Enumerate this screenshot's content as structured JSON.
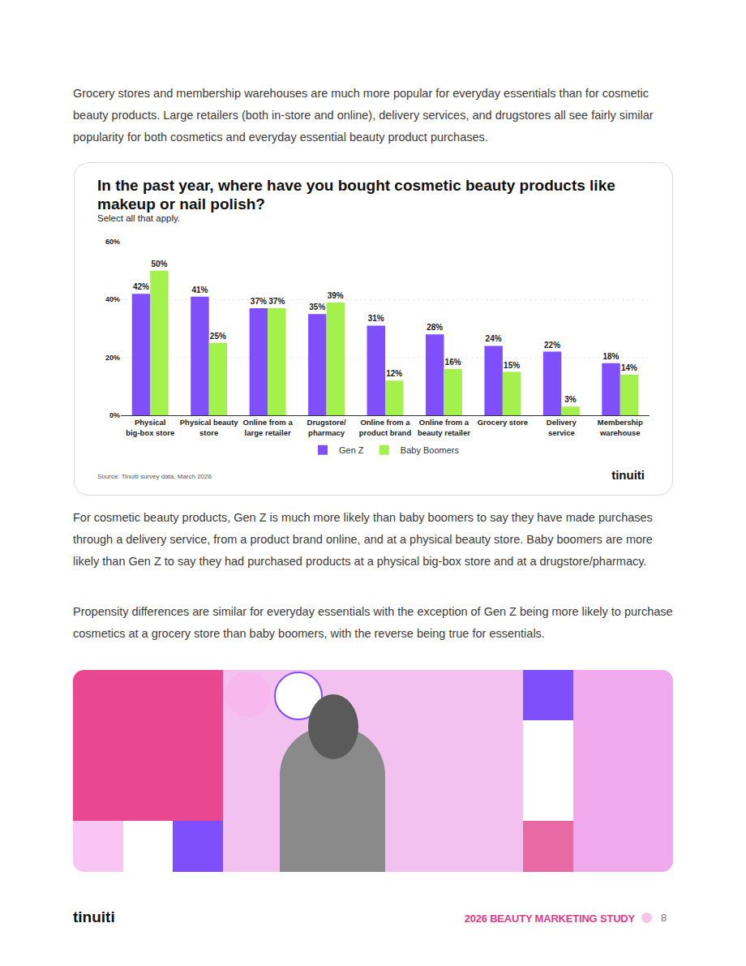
{
  "text_before": [
    "Grocery stores and membership warehouses are much more popular for everyday essentials than for cosmetic beauty products. Large retailers (both in-store and online), delivery services, and drugstores all see fairly similar popularity for both cosmetics and everyday essential beauty product purchases."
  ],
  "chart_card": {
    "source": "Source: Tinuiti survey data, March 2026",
    "logo": "tinuiti"
  },
  "chart_data": {
    "type": "bar",
    "title": "In the past year, where have you bought cosmetic beauty products like makeup or nail polish?",
    "subtitle": "Select all that apply.",
    "categories": [
      "Physical big-box store",
      "Physical beauty store",
      "Online from a large retailer",
      "Drugstore/pharmacy",
      "Online from a product brand",
      "Online from a beauty retailer",
      "Grocery store",
      "Delivery service",
      "Membership warehouse"
    ],
    "series": [
      {
        "name": "Gen Z",
        "color": "#7f4ffb",
        "values": [
          42,
          41,
          37,
          35,
          31,
          28,
          24,
          22,
          18
        ],
        "value_labels": [
          "42%",
          "41%",
          "37%",
          "35%",
          "31%",
          "28%",
          "24%",
          "22%",
          "18%"
        ]
      },
      {
        "name": "Baby Boomers",
        "color": "#a4f04c",
        "values": [
          50,
          25,
          37,
          39,
          12,
          16,
          15,
          3,
          14
        ],
        "value_labels": [
          "50%",
          "25%",
          "37%",
          "39%",
          "12%",
          "16%",
          "15%",
          "3%",
          "14%"
        ]
      }
    ],
    "ylim": [
      0,
      60
    ],
    "yticks": [
      {
        "value": 0,
        "label": "0%"
      },
      {
        "value": 20,
        "label": "20%"
      },
      {
        "value": 40,
        "label": "40%"
      },
      {
        "value": 60,
        "label": "60%"
      }
    ],
    "grid": true,
    "legend": "bottom",
    "data_labels": true
  },
  "text_after": [
    "For cosmetic beauty products, Gen Z is much more likely than baby boomers to say they have made purchases through a delivery service, from a product brand online, and at a physical beauty store. Baby boomers are more likely than Gen Z to say they had purchased products at a physical big-box store and at a drugstore/pharmacy.",
    "Propensity differences are similar for everyday essentials with the exception of Gen Z being more likely to purchase cosmetics at a grocery store than baby boomers, with the reverse being true for essentials."
  ],
  "footer": {
    "logo": "tinuiti",
    "title": "2026 BEAUTY MARKETING STUDY",
    "page": 8
  }
}
